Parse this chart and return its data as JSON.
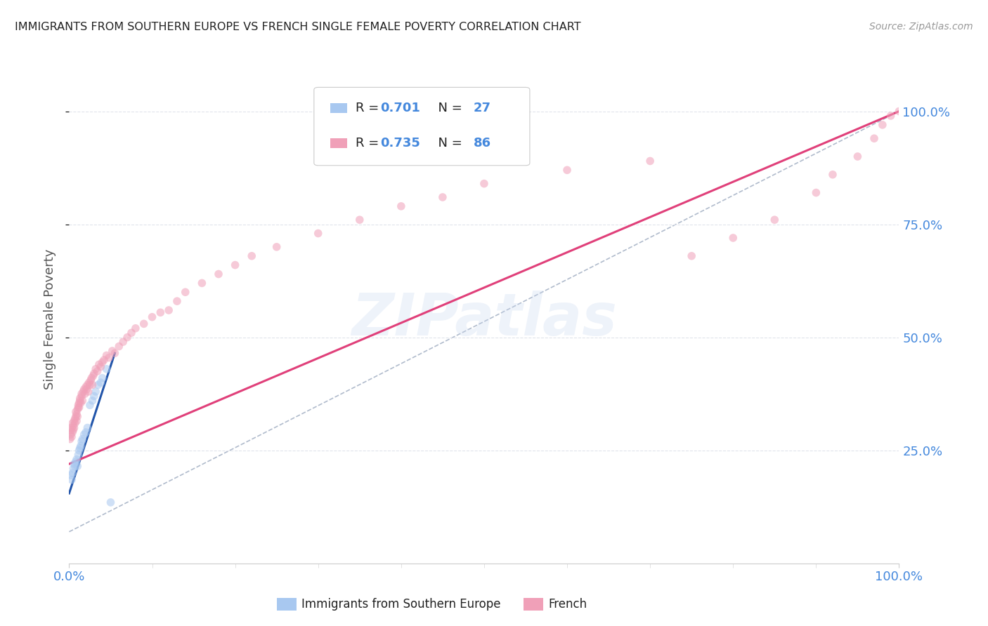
{
  "title": "IMMIGRANTS FROM SOUTHERN EUROPE VS FRENCH SINGLE FEMALE POVERTY CORRELATION CHART",
  "source": "Source: ZipAtlas.com",
  "ylabel": "Single Female Poverty",
  "legend_label_blue": "Immigrants from Southern Europe",
  "legend_label_pink": "French",
  "legend_r_blue": "0.701",
  "legend_n_blue": "27",
  "legend_r_pink": "0.735",
  "legend_n_pink": "86",
  "blue_scatter_x": [
    0.002,
    0.003,
    0.004,
    0.005,
    0.006,
    0.007,
    0.008,
    0.009,
    0.01,
    0.011,
    0.012,
    0.013,
    0.014,
    0.015,
    0.016,
    0.018,
    0.02,
    0.022,
    0.025,
    0.028,
    0.03,
    0.032,
    0.035,
    0.038,
    0.04,
    0.045,
    0.05
  ],
  "blue_scatter_y": [
    0.195,
    0.185,
    0.2,
    0.21,
    0.22,
    0.215,
    0.225,
    0.23,
    0.215,
    0.24,
    0.25,
    0.255,
    0.26,
    0.27,
    0.275,
    0.285,
    0.29,
    0.3,
    0.35,
    0.36,
    0.37,
    0.38,
    0.395,
    0.4,
    0.41,
    0.43,
    0.135
  ],
  "pink_scatter_x": [
    0.001,
    0.002,
    0.002,
    0.003,
    0.003,
    0.004,
    0.004,
    0.005,
    0.005,
    0.006,
    0.006,
    0.007,
    0.007,
    0.008,
    0.008,
    0.009,
    0.009,
    0.01,
    0.01,
    0.011,
    0.011,
    0.012,
    0.012,
    0.013,
    0.013,
    0.014,
    0.015,
    0.015,
    0.016,
    0.017,
    0.018,
    0.019,
    0.02,
    0.021,
    0.022,
    0.023,
    0.024,
    0.025,
    0.026,
    0.027,
    0.028,
    0.029,
    0.03,
    0.032,
    0.034,
    0.036,
    0.038,
    0.04,
    0.042,
    0.045,
    0.048,
    0.052,
    0.055,
    0.06,
    0.065,
    0.07,
    0.075,
    0.08,
    0.09,
    0.1,
    0.11,
    0.12,
    0.13,
    0.14,
    0.16,
    0.18,
    0.2,
    0.22,
    0.25,
    0.3,
    0.35,
    0.4,
    0.45,
    0.5,
    0.6,
    0.7,
    0.75,
    0.8,
    0.85,
    0.9,
    0.92,
    0.95,
    0.97,
    0.98,
    0.99,
    1.0
  ],
  "pink_scatter_y": [
    0.275,
    0.285,
    0.295,
    0.28,
    0.3,
    0.29,
    0.31,
    0.295,
    0.305,
    0.315,
    0.3,
    0.32,
    0.31,
    0.325,
    0.335,
    0.315,
    0.33,
    0.34,
    0.325,
    0.345,
    0.35,
    0.355,
    0.345,
    0.36,
    0.365,
    0.355,
    0.37,
    0.375,
    0.36,
    0.38,
    0.385,
    0.375,
    0.39,
    0.385,
    0.395,
    0.38,
    0.4,
    0.395,
    0.405,
    0.41,
    0.395,
    0.415,
    0.42,
    0.43,
    0.425,
    0.44,
    0.435,
    0.445,
    0.45,
    0.46,
    0.455,
    0.47,
    0.465,
    0.48,
    0.49,
    0.5,
    0.51,
    0.52,
    0.53,
    0.545,
    0.555,
    0.56,
    0.58,
    0.6,
    0.62,
    0.64,
    0.66,
    0.68,
    0.7,
    0.73,
    0.76,
    0.79,
    0.81,
    0.84,
    0.87,
    0.89,
    0.68,
    0.72,
    0.76,
    0.82,
    0.86,
    0.9,
    0.94,
    0.97,
    0.99,
    1.0
  ],
  "blue_line_x": [
    0.0,
    0.055
  ],
  "blue_line_y": [
    0.155,
    0.465
  ],
  "pink_line_x": [
    0.0,
    1.0
  ],
  "pink_line_y": [
    0.22,
    1.0
  ],
  "dashed_line_x": [
    0.0,
    1.0
  ],
  "dashed_line_y": [
    0.07,
    1.0
  ],
  "scatter_size": 70,
  "scatter_alpha": 0.55,
  "blue_color": "#A8C8F0",
  "pink_color": "#F0A0B8",
  "blue_line_color": "#2255AA",
  "pink_line_color": "#E0407A",
  "dashed_line_color": "#B0BBCC",
  "grid_color": "#E0E4EC",
  "title_color": "#222222",
  "axis_label_color": "#555555",
  "right_tick_color": "#4488DD",
  "bottom_tick_color": "#4488DD",
  "source_color": "#999999",
  "legend_text_color": "#222222",
  "legend_r_color": "#4488DD",
  "xlim": [
    0.0,
    1.0
  ],
  "ylim": [
    0.0,
    1.08
  ],
  "background_color": "#FFFFFF"
}
